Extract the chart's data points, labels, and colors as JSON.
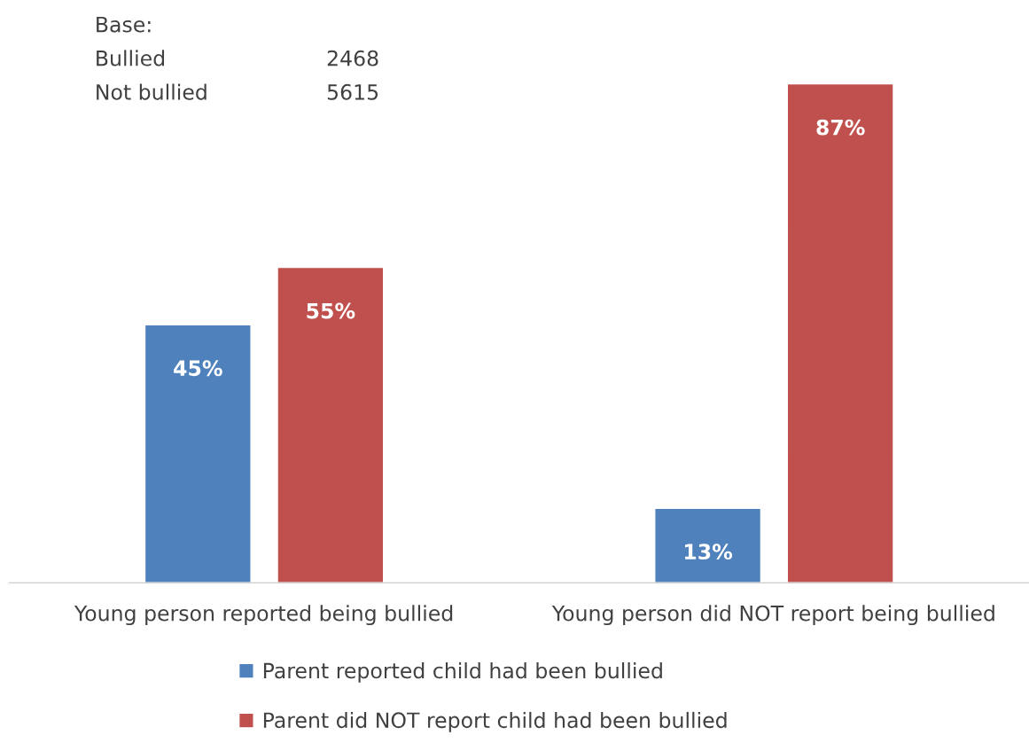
{
  "chart_data": {
    "type": "bar",
    "categories": [
      "Young person reported being bullied",
      "Young person did NOT report being bullied"
    ],
    "series": [
      {
        "name": "Parent reported child had been bullied",
        "color": "#4f81bd",
        "values": [
          45,
          13
        ],
        "value_labels": [
          "45%",
          "13%"
        ]
      },
      {
        "name": "Parent did NOT report child had been bullied",
        "color": "#c0504d",
        "values": [
          55,
          87
        ],
        "value_labels": [
          "55%",
          "87%"
        ]
      }
    ],
    "annotations": [
      "Base:",
      "Bullied\t2468",
      "Not bullied\t5615"
    ],
    "legend": "bottom",
    "grid": false
  }
}
